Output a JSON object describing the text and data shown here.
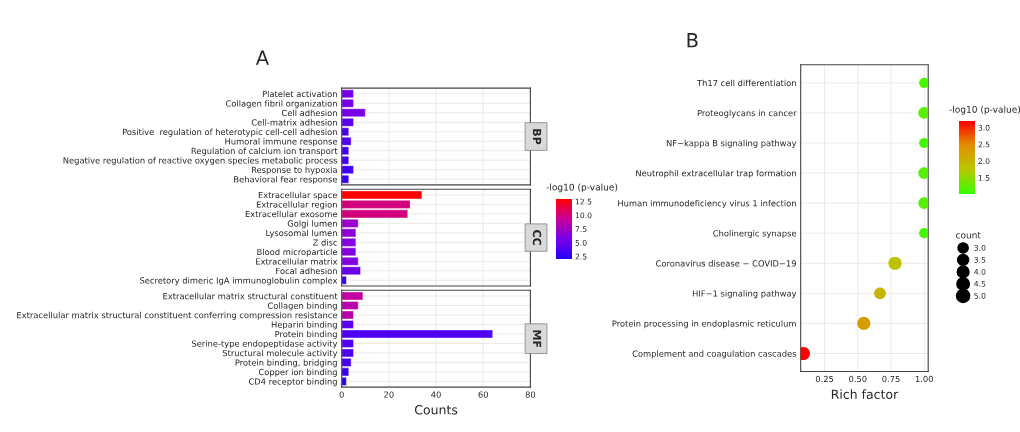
{
  "chart_data": [
    {
      "type": "bar",
      "orientation": "horizontal",
      "title": "BP",
      "annotations": [
        "A"
      ],
      "categories": [
        "Platelet activation",
        "Collagen fibril organization",
        "Cell adhesion",
        "Cell-matrix adhesion",
        "Positive  regulation of heterotypic cell-cell adhesion",
        "Humoral immune response",
        "Regulation of calcium ion transport",
        "Negative regulation of reactive oxygen species metabolic process",
        "Response to hypoxia",
        "Behavioral fear response"
      ],
      "values": [
        5,
        5,
        10,
        5,
        3,
        4,
        3,
        3,
        5,
        3
      ],
      "colors": [
        "#7500e7",
        "#7500e7",
        "#7500e7",
        "#5e00ee",
        "#4400f5",
        "#5000f2",
        "#4400f5",
        "#4400f5",
        "#4400f5",
        "#3700f9"
      ],
      "xlim": [
        0,
        80
      ],
      "xticks": [
        0,
        20,
        40,
        60,
        80
      ],
      "tick_labels": "y",
      "grid": true
    },
    {
      "type": "bar",
      "orientation": "horizontal",
      "title": "CC",
      "categories": [
        "Extracellular space",
        "Extracellular region",
        "Extracellular exosome",
        "Golgi lumen",
        "Lysosomal lumen",
        "Z disc",
        "Blood microparticle",
        "Extracellular matrix",
        "Focal adhesion",
        "Secretory dimeric IgA immunoglobulin complex"
      ],
      "values": [
        34,
        29,
        28,
        7,
        6,
        6,
        6,
        7,
        8,
        2
      ],
      "cvalues": [
        13,
        10,
        10,
        7,
        6.5,
        6,
        6,
        6,
        5,
        3
      ],
      "clim": [
        2,
        13
      ],
      "cticks": [
        {
          "value": 2.5,
          "label": "2.5"
        },
        {
          "value": 5,
          "label": "5.0"
        },
        {
          "value": 7.5,
          "label": "7.5"
        },
        {
          "value": 10,
          "label": "10.0"
        },
        {
          "value": 12.5,
          "label": "12.5"
        }
      ],
      "clabel": "-log10 (p-value)",
      "xlim": [
        0,
        80
      ],
      "xticks": [
        0,
        20,
        40,
        60,
        80
      ],
      "tick_labels": "y",
      "grid": true
    },
    {
      "type": "bar",
      "orientation": "horizontal",
      "title": "MF",
      "xlabel": "Counts",
      "categories": [
        "Extracellular matrix structural constituent",
        "Collagen binding",
        "Extracellular matrix structural constituent conferring compression resistance",
        "Heparin binding",
        "Protein binding",
        "Serine-type endopeptidase activity",
        "Structural molecule activity",
        "Protein binding, bridging",
        "Copper ion binding",
        "CD4 receptor binding"
      ],
      "values": [
        9,
        7,
        5,
        5,
        64,
        5,
        5,
        4,
        3,
        2
      ],
      "colors": [
        "#c1009f",
        "#b800ab",
        "#b800ab",
        "#5e00ee",
        "#5000f2",
        "#5000f2",
        "#5000f2",
        "#4400f5",
        "#3700f9",
        "#2c00fc"
      ],
      "xlim": [
        0,
        80
      ],
      "xticks": [
        0,
        20,
        40,
        60,
        80
      ],
      "grid": true
    },
    {
      "type": "bubble",
      "orientation": "horizontal",
      "title": "B",
      "xlabel": "Rich factor",
      "categories": [
        "Th17 cell differentiation",
        "Proteoglycans in cancer",
        "NF−kappa B signaling pathway",
        "Neutrophil extracellular trap formation",
        "Human immunodeficiency virus 1 infection",
        "Cholinergic synapse",
        "Coronavirus disease − COVID−19",
        "HIF−1 signaling pathway",
        "Protein processing in endoplasmic reticulum",
        "Complement and coagulation cascades"
      ],
      "values": [
        1.0,
        1.0,
        1.0,
        1.0,
        1.0,
        1.0,
        0.78,
        0.667,
        0.545,
        0.09
      ],
      "sizes": [
        3,
        4,
        3,
        4,
        4,
        3,
        5,
        4,
        5,
        5
      ],
      "size_legend": [
        {
          "value": 3,
          "label": "3.0"
        },
        {
          "value": 3.5,
          "label": "3.5"
        },
        {
          "value": 4,
          "label": "4.0"
        },
        {
          "value": 4.5,
          "label": "4.5"
        },
        {
          "value": 5,
          "label": "5.0"
        }
      ],
      "legend_title": "count",
      "cvalues": [
        1.1,
        1.2,
        1.1,
        1.2,
        1.2,
        1.1,
        1.8,
        2.0,
        2.3,
        3.2
      ],
      "clim": [
        1.0,
        3.2
      ],
      "cticks": [
        {
          "value": 1.5,
          "label": "1.5"
        },
        {
          "value": 2.0,
          "label": "2.0"
        },
        {
          "value": 2.5,
          "label": "2.5"
        },
        {
          "value": 3.0,
          "label": "3.0"
        }
      ],
      "clabel": "-log10 (p-value)",
      "xlim": [
        0.07,
        1.03
      ],
      "xticks": [
        {
          "value": 0.25,
          "label": "0.25"
        },
        {
          "value": 0.5,
          "label": "0.50"
        },
        {
          "value": 0.75,
          "label": "0.75"
        },
        {
          "value": 1.0,
          "label": "1.00"
        }
      ],
      "grid": true
    }
  ]
}
